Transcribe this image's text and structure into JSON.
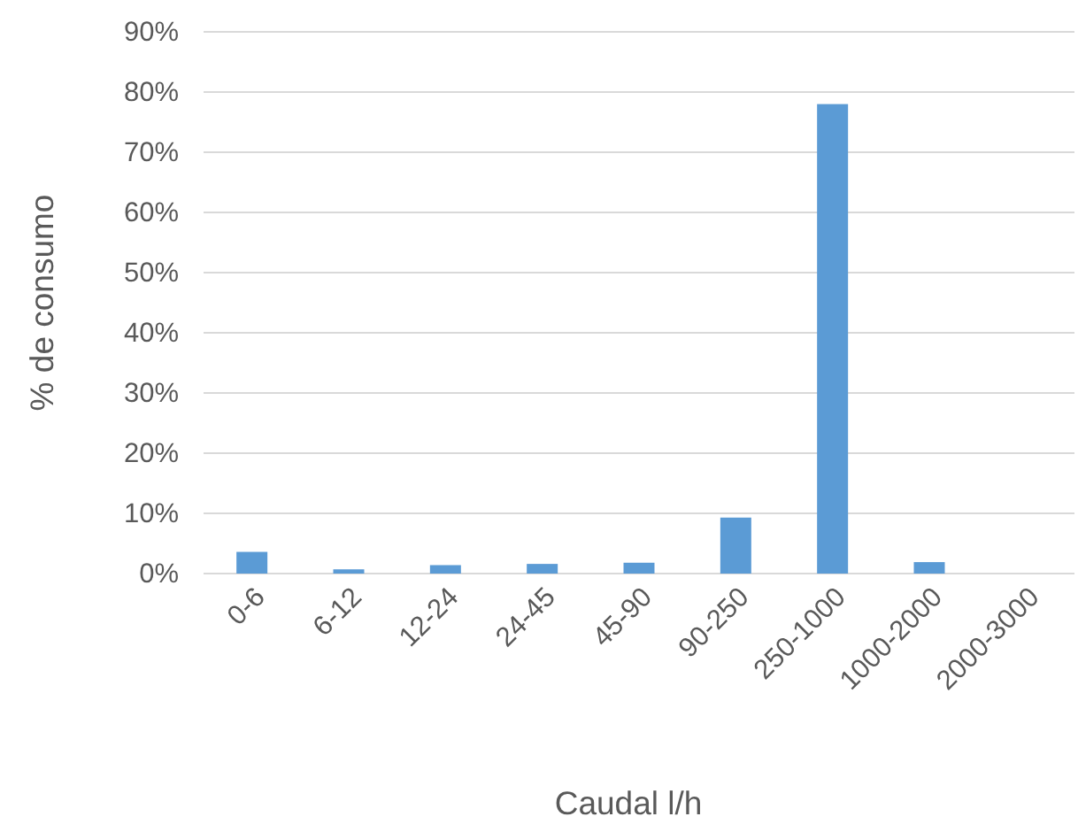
{
  "chart_data": {
    "type": "bar",
    "xlabel": "Caudal l/h",
    "ylabel": "% de consumo",
    "categories": [
      "0-6",
      "6-12",
      "12-24",
      "24-45",
      "45-90",
      "90-250",
      "250-1000",
      "1000-2000",
      "2000-3000"
    ],
    "values": [
      3.6,
      0.7,
      1.4,
      1.6,
      1.8,
      9.3,
      78,
      1.9,
      0
    ],
    "color": "#5b9bd5",
    "ylim": [
      0,
      90
    ],
    "yticks": [
      {
        "value": 0,
        "label": "0%"
      },
      {
        "value": 10,
        "label": "10%"
      },
      {
        "value": 20,
        "label": "20%"
      },
      {
        "value": 30,
        "label": "30%"
      },
      {
        "value": 40,
        "label": "40%"
      },
      {
        "value": 50,
        "label": "50%"
      },
      {
        "value": 60,
        "label": "60%"
      },
      {
        "value": 70,
        "label": "70%"
      },
      {
        "value": 80,
        "label": "80%"
      },
      {
        "value": 90,
        "label": "90%"
      }
    ],
    "grid": "y"
  }
}
